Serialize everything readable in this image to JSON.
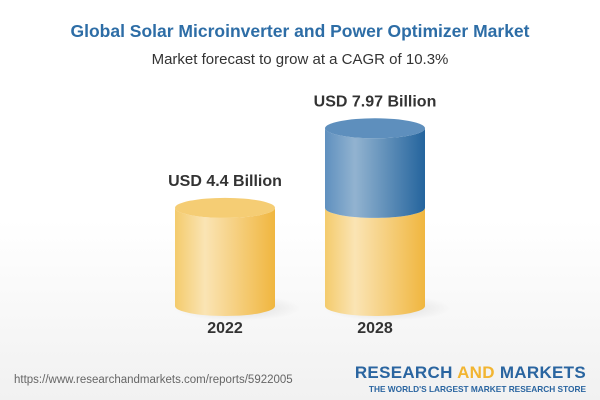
{
  "chart_data": {
    "type": "bar",
    "style": "3d-cylinder",
    "title": "Global Solar Microinverter and Power Optimizer Market",
    "subtitle": "Market forecast to grow at a CAGR of 10.3%",
    "categories": [
      "2022",
      "2028"
    ],
    "values": [
      4.4,
      7.97
    ],
    "data_labels": [
      "USD 4.4 Billion",
      "USD 7.97 Billion"
    ],
    "unit": "USD Billion",
    "colors": {
      "base": "#f2c45a",
      "growth": "#3e78ad",
      "title": "#2d6da6"
    }
  },
  "footer": {
    "url": "https://www.researchandmarkets.com/reports/5922005",
    "logo": {
      "part1": "RESEARCH",
      "part2": "AND",
      "part3": "MARKETS",
      "tagline": "THE WORLD'S LARGEST MARKET RESEARCH STORE"
    }
  }
}
